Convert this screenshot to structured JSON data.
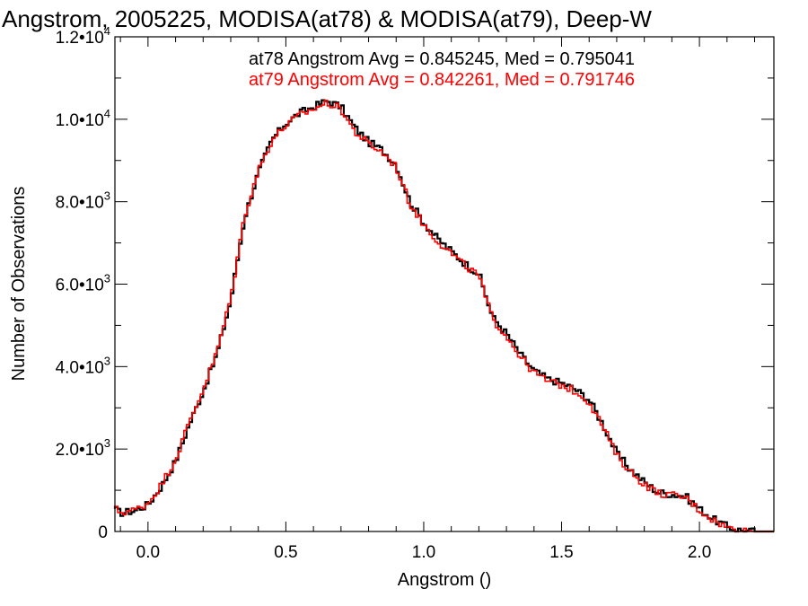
{
  "chart_data": {
    "type": "line",
    "title": "Angstrom, 2005225, MODISA(at78) & MODISA(at79), Deep-W",
    "xlabel": "Angstrom ()",
    "ylabel": "Number of Observations",
    "xlim": [
      -0.12,
      2.27
    ],
    "ylim": [
      0,
      12000
    ],
    "x_ticks": [
      {
        "value": 0.0,
        "label": "0.0"
      },
      {
        "value": 0.5,
        "label": "0.5"
      },
      {
        "value": 1.0,
        "label": "1.0"
      },
      {
        "value": 1.5,
        "label": "1.5"
      },
      {
        "value": 2.0,
        "label": "2.0"
      }
    ],
    "y_ticks": [
      {
        "value": 0,
        "label": "0",
        "exp": ""
      },
      {
        "value": 2000,
        "label": "2.0•10",
        "exp": "3"
      },
      {
        "value": 4000,
        "label": "4.0•10",
        "exp": "3"
      },
      {
        "value": 6000,
        "label": "6.0•10",
        "exp": "3"
      },
      {
        "value": 8000,
        "label": "8.0•10",
        "exp": "3"
      },
      {
        "value": 10000,
        "label": "1.0•10",
        "exp": "4"
      },
      {
        "value": 12000,
        "label": "1.2•10",
        "exp": "4"
      }
    ],
    "annotations": [
      {
        "text": "at78 Angstrom Avg = 0.845245, Med = 0.795041",
        "color": "#000000"
      },
      {
        "text": "at79 Angstrom Avg = 0.842261, Med = 0.791746",
        "color": "#ff0000"
      }
    ],
    "series": [
      {
        "color": "#000000",
        "x": [
          -0.12,
          -0.1,
          -0.05,
          0.0,
          0.05,
          0.1,
          0.15,
          0.2,
          0.25,
          0.3,
          0.35,
          0.4,
          0.45,
          0.5,
          0.55,
          0.6,
          0.65,
          0.7,
          0.75,
          0.8,
          0.85,
          0.9,
          0.95,
          1.0,
          1.05,
          1.1,
          1.15,
          1.2,
          1.25,
          1.3,
          1.35,
          1.4,
          1.45,
          1.5,
          1.55,
          1.6,
          1.65,
          1.7,
          1.75,
          1.8,
          1.85,
          1.9,
          1.95,
          2.0,
          2.05,
          2.1,
          2.15,
          2.2,
          2.27
        ],
        "y": [
          550,
          450,
          500,
          650,
          1100,
          1700,
          2600,
          3400,
          4300,
          5600,
          7600,
          8700,
          9500,
          9900,
          10150,
          10300,
          10450,
          10300,
          9800,
          9450,
          9250,
          8900,
          8000,
          7500,
          7100,
          6800,
          6500,
          6250,
          5200,
          4800,
          4300,
          3900,
          3700,
          3600,
          3450,
          3200,
          2600,
          1900,
          1500,
          1200,
          950,
          900,
          850,
          550,
          300,
          120,
          30,
          0,
          0
        ]
      },
      {
        "color": "#ff0000",
        "x": [
          -0.12,
          -0.1,
          -0.05,
          0.0,
          0.05,
          0.1,
          0.15,
          0.2,
          0.25,
          0.3,
          0.35,
          0.4,
          0.45,
          0.5,
          0.55,
          0.6,
          0.65,
          0.7,
          0.75,
          0.8,
          0.85,
          0.9,
          0.95,
          1.0,
          1.05,
          1.1,
          1.15,
          1.2,
          1.25,
          1.3,
          1.35,
          1.4,
          1.45,
          1.5,
          1.55,
          1.6,
          1.65,
          1.7,
          1.75,
          1.8,
          1.85,
          1.9,
          1.95,
          2.0,
          2.05,
          2.1,
          2.15,
          2.2,
          2.27
        ],
        "y": [
          560,
          460,
          520,
          680,
          1150,
          1750,
          2650,
          3450,
          4350,
          5650,
          7650,
          8750,
          9500,
          9850,
          10100,
          10250,
          10400,
          10250,
          9700,
          9400,
          9200,
          8850,
          7950,
          7450,
          7050,
          6750,
          6450,
          6200,
          5150,
          4750,
          4250,
          3850,
          3650,
          3550,
          3400,
          3150,
          2550,
          1850,
          1450,
          1150,
          930,
          880,
          830,
          520,
          280,
          100,
          20,
          0,
          0
        ]
      }
    ]
  }
}
